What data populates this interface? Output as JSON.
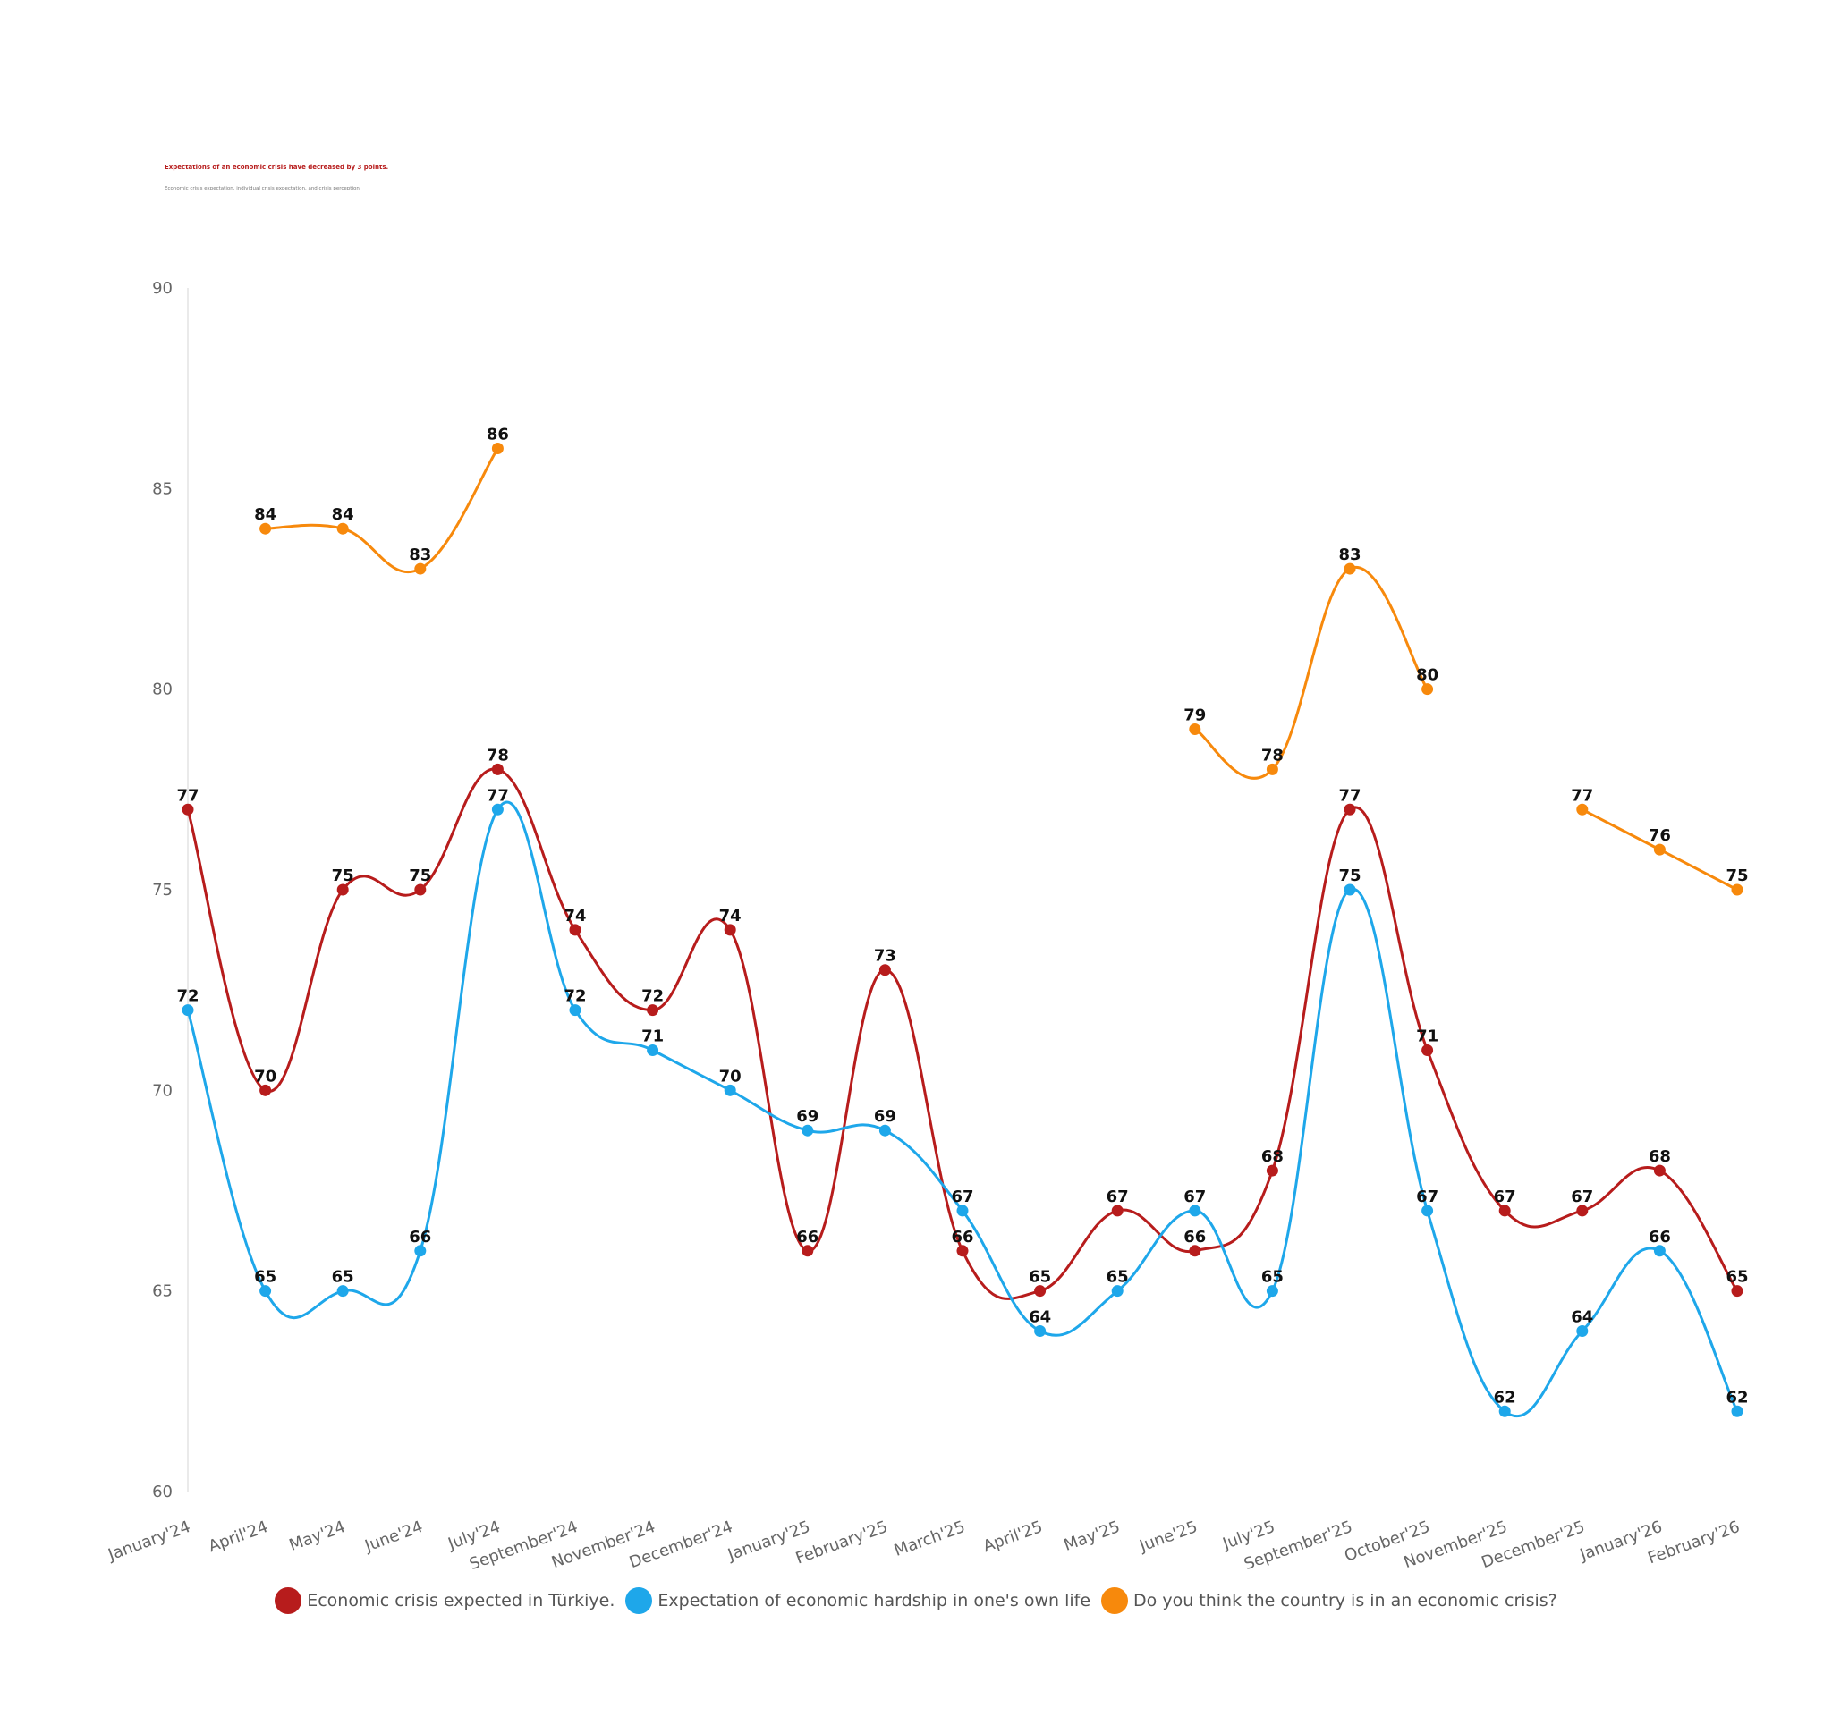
{
  "chart_data": {
    "type": "line",
    "title": "Expectations of an economic crisis have decreased by 3 points.",
    "subtitle": "Economic crisis expectation, individual crisis expectation, and crisis perception",
    "xlabel": "",
    "ylabel": "",
    "ylim": [
      60,
      90
    ],
    "yticks": [
      60,
      65,
      70,
      75,
      80,
      85,
      90
    ],
    "grid": false,
    "legend_position": "bottom",
    "categories": [
      "January'24",
      "April'24",
      "May'24",
      "June'24",
      "July'24",
      "September'24",
      "November'24",
      "December'24",
      "January'25",
      "February'25",
      "March'25",
      "April'25",
      "May'25",
      "June'25",
      "July'25",
      "September'25",
      "October'25",
      "November'25",
      "December'25",
      "January'26",
      "February'26"
    ],
    "series": [
      {
        "name": "Economic crisis expected in Türkiye.",
        "color": "#b71c1c",
        "values": [
          77,
          70,
          75,
          75,
          78,
          74,
          72,
          74,
          66,
          73,
          66,
          65,
          67,
          66,
          68,
          77,
          71,
          67,
          67,
          68,
          65
        ]
      },
      {
        "name": "Expectation of economic hardship in one's own life",
        "color": "#1ea7ea",
        "values": [
          72,
          65,
          65,
          66,
          77,
          72,
          71,
          70,
          69,
          69,
          67,
          64,
          65,
          67,
          65,
          75,
          67,
          62,
          64,
          66,
          62
        ]
      },
      {
        "name": "Do you think the country is in an economic crisis?",
        "color": "#f7890c",
        "values": [
          null,
          84,
          84,
          83,
          86,
          null,
          null,
          null,
          null,
          null,
          null,
          null,
          null,
          79,
          78,
          83,
          80,
          null,
          77,
          76,
          75
        ]
      }
    ]
  }
}
